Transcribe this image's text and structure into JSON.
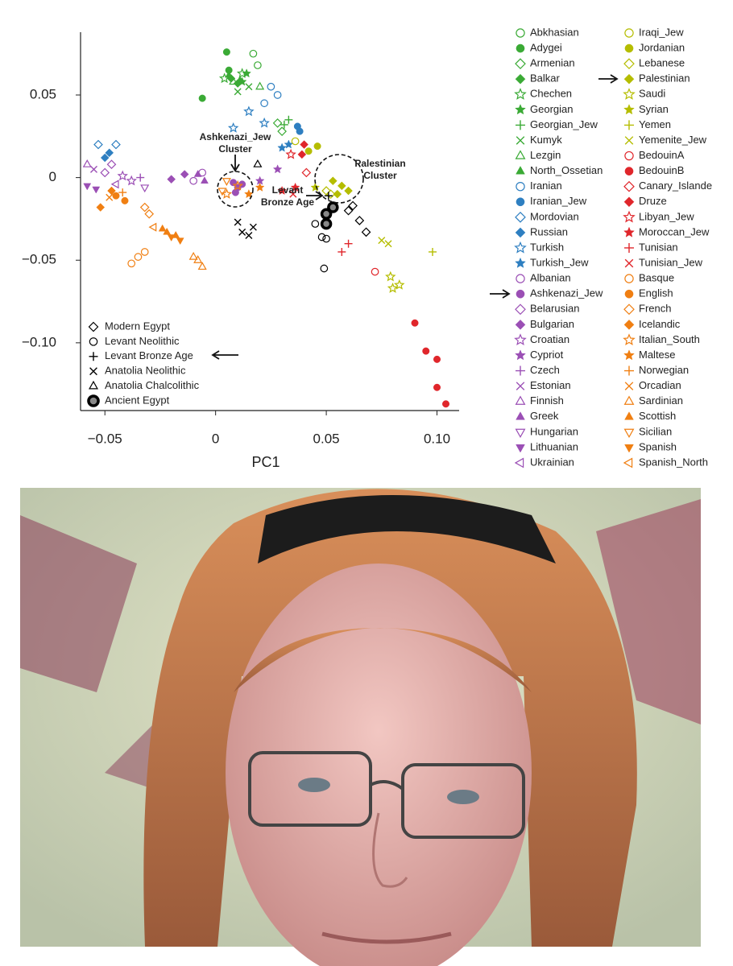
{
  "chart_data": {
    "type": "scatter",
    "xlabel": "PC1",
    "xlim": [
      -0.061,
      0.11
    ],
    "ylim": [
      -0.141,
      0.088
    ],
    "xticks": [
      {
        "value": -0.05,
        "label": "−0.05"
      },
      0,
      0.05,
      {
        "value": 0.1,
        "label": "0.10"
      }
    ],
    "yticks": [
      0.05,
      0,
      {
        "value": -0.05,
        "label": "−0.05"
      },
      {
        "value": -0.1,
        "label": "−0.10"
      }
    ],
    "annotations": [
      {
        "lines": [
          "Ashkenazi_Jew",
          "Cluster"
        ]
      },
      {
        "lines": [
          "Palestinian",
          "Cluster"
        ]
      },
      {
        "lines": [
          "Levant",
          "Bronze Age"
        ]
      }
    ],
    "series": [
      {
        "name": "Abkhasian",
        "marker": "circle-open",
        "color": "#3aaa35",
        "x": [
          0.017,
          0.019
        ],
        "values": [
          0.075,
          0.068
        ]
      },
      {
        "name": "Adygei",
        "marker": "circle",
        "color": "#3aaa35",
        "x": [
          0.005,
          0.006,
          -0.006
        ],
        "values": [
          0.076,
          0.065,
          0.048
        ]
      },
      {
        "name": "Armenian",
        "marker": "diamond-open",
        "color": "#3aaa35",
        "x": [
          0.028,
          0.03
        ],
        "values": [
          0.033,
          0.028
        ]
      },
      {
        "name": "Balkar",
        "marker": "diamond",
        "color": "#3aaa35",
        "x": [
          0.007,
          0.01
        ],
        "values": [
          0.06,
          0.057
        ]
      },
      {
        "name": "Chechen",
        "marker": "star-open",
        "color": "#3aaa35",
        "x": [
          0.012,
          0.004
        ],
        "values": [
          0.063,
          0.06
        ]
      },
      {
        "name": "Georgian",
        "marker": "star",
        "color": "#3aaa35",
        "x": [
          0.012,
          0.014
        ],
        "values": [
          0.058,
          0.063
        ]
      },
      {
        "name": "Georgian_Jew",
        "marker": "plus",
        "color": "#3aaa35",
        "x": [
          0.033,
          0.031
        ],
        "values": [
          0.035,
          0.032
        ]
      },
      {
        "name": "Kumyk",
        "marker": "x",
        "color": "#3aaa35",
        "x": [
          0.01,
          0.015
        ],
        "values": [
          0.052,
          0.055
        ]
      },
      {
        "name": "Lezgin",
        "marker": "triangle-open",
        "color": "#3aaa35",
        "x": [
          0.008,
          0.02
        ],
        "values": [
          0.058,
          0.055
        ]
      },
      {
        "name": "North_Ossetian",
        "marker": "triangle",
        "color": "#3aaa35",
        "x": [
          0.006,
          0.011
        ],
        "values": [
          0.062,
          0.059
        ]
      },
      {
        "name": "Iranian",
        "marker": "circle-open",
        "color": "#2e7fc1",
        "x": [
          0.025,
          0.028,
          0.022
        ],
        "values": [
          0.055,
          0.05,
          0.045
        ]
      },
      {
        "name": "Iranian_Jew",
        "marker": "circle",
        "color": "#2e7fc1",
        "x": [
          0.037,
          0.038
        ],
        "values": [
          0.031,
          0.028
        ]
      },
      {
        "name": "Mordovian",
        "marker": "diamond-open",
        "color": "#2e7fc1",
        "x": [
          -0.053,
          -0.045
        ],
        "values": [
          0.02,
          0.02
        ]
      },
      {
        "name": "Russian",
        "marker": "diamond",
        "color": "#2e7fc1",
        "x": [
          -0.05,
          -0.048
        ],
        "values": [
          0.012,
          0.015
        ]
      },
      {
        "name": "Turkish",
        "marker": "star-open",
        "color": "#2e7fc1",
        "x": [
          0.015,
          0.022,
          0.008
        ],
        "values": [
          0.04,
          0.033,
          0.03
        ]
      },
      {
        "name": "Turkish_Jew",
        "marker": "star",
        "color": "#2e7fc1",
        "x": [
          0.03,
          0.033
        ],
        "values": [
          0.018,
          0.02
        ]
      },
      {
        "name": "Albanian",
        "marker": "circle-open",
        "color": "#9b4fb5",
        "x": [
          -0.006,
          -0.01
        ],
        "values": [
          0.003,
          -0.002
        ]
      },
      {
        "name": "Ashkenazi_Jew",
        "marker": "circle",
        "color": "#9b4fb5",
        "x": [
          0.008,
          0.01,
          0.012,
          0.009
        ],
        "values": [
          -0.003,
          -0.006,
          -0.004,
          -0.009
        ]
      },
      {
        "name": "Belarusian",
        "marker": "diamond-open",
        "color": "#9b4fb5",
        "x": [
          -0.047,
          -0.05
        ],
        "values": [
          0.008,
          0.003
        ]
      },
      {
        "name": "Bulgarian",
        "marker": "diamond",
        "color": "#9b4fb5",
        "x": [
          -0.014,
          -0.02
        ],
        "values": [
          0.002,
          -0.001
        ]
      },
      {
        "name": "Croatian",
        "marker": "star-open",
        "color": "#9b4fb5",
        "x": [
          -0.038,
          -0.042
        ],
        "values": [
          -0.002,
          0.001
        ]
      },
      {
        "name": "Cypriot",
        "marker": "star",
        "color": "#9b4fb5",
        "x": [
          0.02,
          0.028
        ],
        "values": [
          -0.002,
          0.005
        ]
      },
      {
        "name": "Czech",
        "marker": "plus",
        "color": "#9b4fb5",
        "x": [
          -0.034
        ],
        "values": [
          0.0
        ]
      },
      {
        "name": "Estonian",
        "marker": "x",
        "color": "#9b4fb5",
        "x": [
          -0.055
        ],
        "values": [
          0.005
        ]
      },
      {
        "name": "Finnish",
        "marker": "triangle-open",
        "color": "#9b4fb5",
        "x": [
          -0.058
        ],
        "values": [
          0.008
        ]
      },
      {
        "name": "Greek",
        "marker": "triangle",
        "color": "#9b4fb5",
        "x": [
          -0.008,
          -0.005
        ],
        "values": [
          0.002,
          -0.002
        ]
      },
      {
        "name": "Hungarian",
        "marker": "tridown-open",
        "color": "#9b4fb5",
        "x": [
          -0.032
        ],
        "values": [
          -0.006
        ]
      },
      {
        "name": "Lithuanian",
        "marker": "tridown",
        "color": "#9b4fb5",
        "x": [
          -0.058,
          -0.054
        ],
        "values": [
          -0.005,
          -0.007
        ]
      },
      {
        "name": "Ukrainian",
        "marker": "trileft-open",
        "color": "#9b4fb5",
        "x": [
          -0.045
        ],
        "values": [
          -0.004
        ]
      },
      {
        "name": "Iraqi_Jew",
        "marker": "circle-open",
        "color": "#b5bd00",
        "x": [
          0.036
        ],
        "values": [
          0.022
        ]
      },
      {
        "name": "Jordanian",
        "marker": "circle",
        "color": "#b5bd00",
        "x": [
          0.042,
          0.046
        ],
        "values": [
          0.016,
          0.019
        ]
      },
      {
        "name": "Lebanese",
        "marker": "diamond-open",
        "color": "#b5bd00",
        "x": [
          0.05,
          0.052
        ],
        "values": [
          -0.008,
          -0.01
        ]
      },
      {
        "name": "Palestinian",
        "marker": "diamond",
        "color": "#b5bd00",
        "x": [
          0.053,
          0.057,
          0.06,
          0.055
        ],
        "values": [
          -0.002,
          -0.005,
          -0.008,
          -0.01
        ]
      },
      {
        "name": "Saudi",
        "marker": "star-open",
        "color": "#b5bd00",
        "x": [
          0.079,
          0.083,
          0.08
        ],
        "values": [
          -0.06,
          -0.065,
          -0.067
        ]
      },
      {
        "name": "Syrian",
        "marker": "star",
        "color": "#b5bd00",
        "x": [
          0.045
        ],
        "values": [
          -0.006
        ]
      },
      {
        "name": "Yemen",
        "marker": "plus",
        "color": "#b5bd00",
        "x": [
          0.098
        ],
        "values": [
          -0.045
        ]
      },
      {
        "name": "Yemenite_Jew",
        "marker": "x",
        "color": "#b5bd00",
        "x": [
          0.078,
          0.075
        ],
        "values": [
          -0.04,
          -0.038
        ]
      },
      {
        "name": "BedouinA",
        "marker": "circle-open",
        "color": "#e0262b",
        "x": [
          0.072
        ],
        "values": [
          -0.057
        ]
      },
      {
        "name": "BedouinB",
        "marker": "circle",
        "color": "#e0262b",
        "x": [
          0.09,
          0.095,
          0.1,
          0.1,
          0.104
        ],
        "values": [
          -0.088,
          -0.105,
          -0.11,
          -0.127,
          -0.137
        ]
      },
      {
        "name": "Canary_Islande",
        "marker": "diamond-open",
        "color": "#e0262b",
        "x": [
          0.041
        ],
        "values": [
          0.003
        ]
      },
      {
        "name": "Druze",
        "marker": "diamond",
        "color": "#e0262b",
        "x": [
          0.04,
          0.039
        ],
        "values": [
          0.02,
          0.014
        ]
      },
      {
        "name": "Libyan_Jew",
        "marker": "star-open",
        "color": "#e0262b",
        "x": [
          0.034
        ],
        "values": [
          0.014
        ]
      },
      {
        "name": "Moroccan_Jew",
        "marker": "star",
        "color": "#e0262b",
        "x": [
          0.036,
          0.03
        ],
        "values": [
          -0.006,
          -0.008
        ]
      },
      {
        "name": "Tunisian",
        "marker": "plus",
        "color": "#e0262b",
        "x": [
          0.06,
          0.057
        ],
        "values": [
          -0.04,
          -0.045
        ]
      },
      {
        "name": "Tunisian_Jew",
        "marker": "x",
        "color": "#e0262b",
        "x": [
          0.035
        ],
        "values": [
          -0.01
        ]
      },
      {
        "name": "Basque",
        "marker": "circle-open",
        "color": "#f07f12",
        "x": [
          -0.035,
          -0.038,
          -0.032
        ],
        "values": [
          -0.048,
          -0.052,
          -0.045
        ]
      },
      {
        "name": "English",
        "marker": "circle",
        "color": "#f07f12",
        "x": [
          -0.045,
          -0.041
        ],
        "values": [
          -0.011,
          -0.014
        ]
      },
      {
        "name": "French",
        "marker": "diamond-open",
        "color": "#f07f12",
        "x": [
          -0.032,
          -0.03
        ],
        "values": [
          -0.018,
          -0.022
        ]
      },
      {
        "name": "Icelandic",
        "marker": "diamond",
        "color": "#f07f12",
        "x": [
          -0.052,
          -0.047
        ],
        "values": [
          -0.018,
          -0.008
        ]
      },
      {
        "name": "Italian_South",
        "marker": "star-open",
        "color": "#f07f12",
        "x": [
          0.01,
          0.005
        ],
        "values": [
          -0.005,
          -0.01
        ]
      },
      {
        "name": "Maltese",
        "marker": "star",
        "color": "#f07f12",
        "x": [
          0.015,
          0.02
        ],
        "values": [
          -0.01,
          -0.006
        ]
      },
      {
        "name": "Norwegian",
        "marker": "plus",
        "color": "#f07f12",
        "x": [
          -0.042
        ],
        "values": [
          -0.009
        ]
      },
      {
        "name": "Orcadian",
        "marker": "x",
        "color": "#f07f12",
        "x": [
          -0.048
        ],
        "values": [
          -0.012
        ]
      },
      {
        "name": "Sardinian",
        "marker": "triangle-open",
        "color": "#f07f12",
        "x": [
          -0.008,
          -0.006,
          -0.01
        ],
        "values": [
          -0.05,
          -0.054,
          -0.048
        ]
      },
      {
        "name": "Scottish",
        "marker": "triangle",
        "color": "#f07f12",
        "x": [
          -0.022,
          -0.018,
          -0.024
        ],
        "values": [
          -0.033,
          -0.035,
          -0.031
        ]
      },
      {
        "name": "Sicilian",
        "marker": "tridown-open",
        "color": "#f07f12",
        "x": [
          0.003,
          0.005
        ],
        "values": [
          -0.008,
          -0.002
        ]
      },
      {
        "name": "Spanish",
        "marker": "tridown",
        "color": "#f07f12",
        "x": [
          -0.02,
          -0.016
        ],
        "values": [
          -0.036,
          -0.038
        ]
      },
      {
        "name": "Spanish_North",
        "marker": "trileft-open",
        "color": "#f07f12",
        "x": [
          -0.028
        ],
        "values": [
          -0.03
        ]
      }
    ],
    "ancient_series": [
      {
        "name": "Modern Egypt",
        "marker": "diamond-open",
        "color": "#000000",
        "x": [
          0.06,
          0.065,
          0.068,
          0.062
        ],
        "values": [
          -0.02,
          -0.026,
          -0.033,
          -0.017
        ]
      },
      {
        "name": "Levant Neolithic",
        "marker": "circle-open",
        "color": "#000000",
        "x": [
          0.045,
          0.048,
          0.05,
          0.049
        ],
        "values": [
          -0.028,
          -0.036,
          -0.037,
          -0.055
        ]
      },
      {
        "name": "Levant Bronze Age",
        "marker": "plus",
        "color": "#000000",
        "x": [
          0.051
        ],
        "values": [
          -0.011
        ]
      },
      {
        "name": "Anatolia Neolithic",
        "marker": "x",
        "color": "#000000",
        "x": [
          0.012,
          0.015,
          0.017,
          0.01
        ],
        "values": [
          -0.033,
          -0.035,
          -0.03,
          -0.027
        ]
      },
      {
        "name": "Anatolia Chalcolithic",
        "marker": "triangle-open",
        "color": "#000000",
        "x": [
          0.019
        ],
        "values": [
          0.008
        ]
      },
      {
        "name": "Ancient Egypt",
        "marker": "ring",
        "color": "#000000",
        "x": [
          0.05,
          0.053,
          0.05
        ],
        "values": [
          -0.022,
          -0.018,
          -0.028
        ]
      }
    ]
  }
}
